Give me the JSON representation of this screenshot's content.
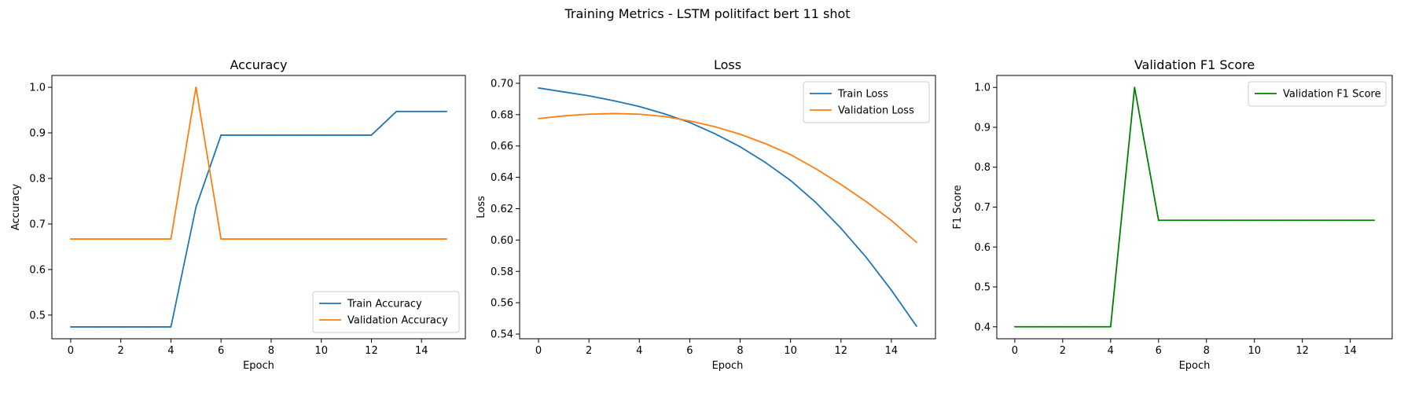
{
  "suptitle": "Training Metrics - LSTM politifact bert 11 shot",
  "chart_data": [
    {
      "type": "line",
      "title": "Accuracy",
      "xlabel": "Epoch",
      "ylabel": "Accuracy",
      "xlim": [
        -0.75,
        15.75
      ],
      "ylim": [
        0.448,
        1.026
      ],
      "xticks": [
        0,
        2,
        4,
        6,
        8,
        10,
        12,
        14
      ],
      "yticks": [
        0.5,
        0.6,
        0.7,
        0.8,
        0.9,
        1.0
      ],
      "ytick_labels": [
        "0.5",
        "0.6",
        "0.7",
        "0.8",
        "0.9",
        "1.0"
      ],
      "legend": "lower-right",
      "x": [
        0,
        1,
        2,
        3,
        4,
        5,
        6,
        7,
        8,
        9,
        10,
        11,
        12,
        13,
        14,
        15
      ],
      "series": [
        {
          "name": "Train Accuracy",
          "color": "#1f77b4",
          "values": [
            0.474,
            0.474,
            0.474,
            0.474,
            0.474,
            0.737,
            0.895,
            0.895,
            0.895,
            0.895,
            0.895,
            0.895,
            0.895,
            0.947,
            0.947,
            0.947
          ]
        },
        {
          "name": "Validation Accuracy",
          "color": "#ff7f0e",
          "values": [
            0.667,
            0.667,
            0.667,
            0.667,
            0.667,
            1.0,
            0.667,
            0.667,
            0.667,
            0.667,
            0.667,
            0.667,
            0.667,
            0.667,
            0.667,
            0.667
          ]
        }
      ]
    },
    {
      "type": "line",
      "title": "Loss",
      "xlabel": "Epoch",
      "ylabel": "Loss",
      "xlim": [
        -0.75,
        15.75
      ],
      "ylim": [
        0.537,
        0.705
      ],
      "xticks": [
        0,
        2,
        4,
        6,
        8,
        10,
        12,
        14
      ],
      "yticks": [
        0.54,
        0.56,
        0.58,
        0.6,
        0.62,
        0.64,
        0.66,
        0.68,
        0.7
      ],
      "ytick_labels": [
        "0.54",
        "0.56",
        "0.58",
        "0.60",
        "0.62",
        "0.64",
        "0.66",
        "0.68",
        "0.70"
      ],
      "legend": "top-right",
      "x": [
        0,
        1,
        2,
        3,
        4,
        5,
        6,
        7,
        8,
        9,
        10,
        11,
        12,
        13,
        14,
        15
      ],
      "series": [
        {
          "name": "Train Loss",
          "color": "#1f77b4",
          "values": [
            0.697,
            0.6945,
            0.692,
            0.6888,
            0.6852,
            0.6805,
            0.675,
            0.6678,
            0.6595,
            0.6495,
            0.638,
            0.624,
            0.6075,
            0.589,
            0.568,
            0.545
          ]
        },
        {
          "name": "Validation Loss",
          "color": "#ff7f0e",
          "values": [
            0.6775,
            0.6792,
            0.6803,
            0.6807,
            0.6803,
            0.6788,
            0.676,
            0.6723,
            0.6675,
            0.6615,
            0.6545,
            0.6455,
            0.6355,
            0.6245,
            0.6125,
            0.5985
          ]
        }
      ]
    },
    {
      "type": "line",
      "title": "Validation F1 Score",
      "xlabel": "Epoch",
      "ylabel": "F1 Score",
      "xlim": [
        -0.75,
        15.75
      ],
      "ylim": [
        0.37,
        1.03
      ],
      "xticks": [
        0,
        2,
        4,
        6,
        8,
        10,
        12,
        14
      ],
      "yticks": [
        0.4,
        0.5,
        0.6,
        0.7,
        0.8,
        0.9,
        1.0
      ],
      "ytick_labels": [
        "0.4",
        "0.5",
        "0.6",
        "0.7",
        "0.8",
        "0.9",
        "1.0"
      ],
      "legend": "top-right",
      "x": [
        0,
        1,
        2,
        3,
        4,
        5,
        6,
        7,
        8,
        9,
        10,
        11,
        12,
        13,
        14,
        15
      ],
      "series": [
        {
          "name": "Validation F1 Score",
          "color": "#008000",
          "values": [
            0.4,
            0.4,
            0.4,
            0.4,
            0.4,
            1.0,
            0.667,
            0.667,
            0.667,
            0.667,
            0.667,
            0.667,
            0.667,
            0.667,
            0.667,
            0.667
          ]
        }
      ]
    }
  ]
}
